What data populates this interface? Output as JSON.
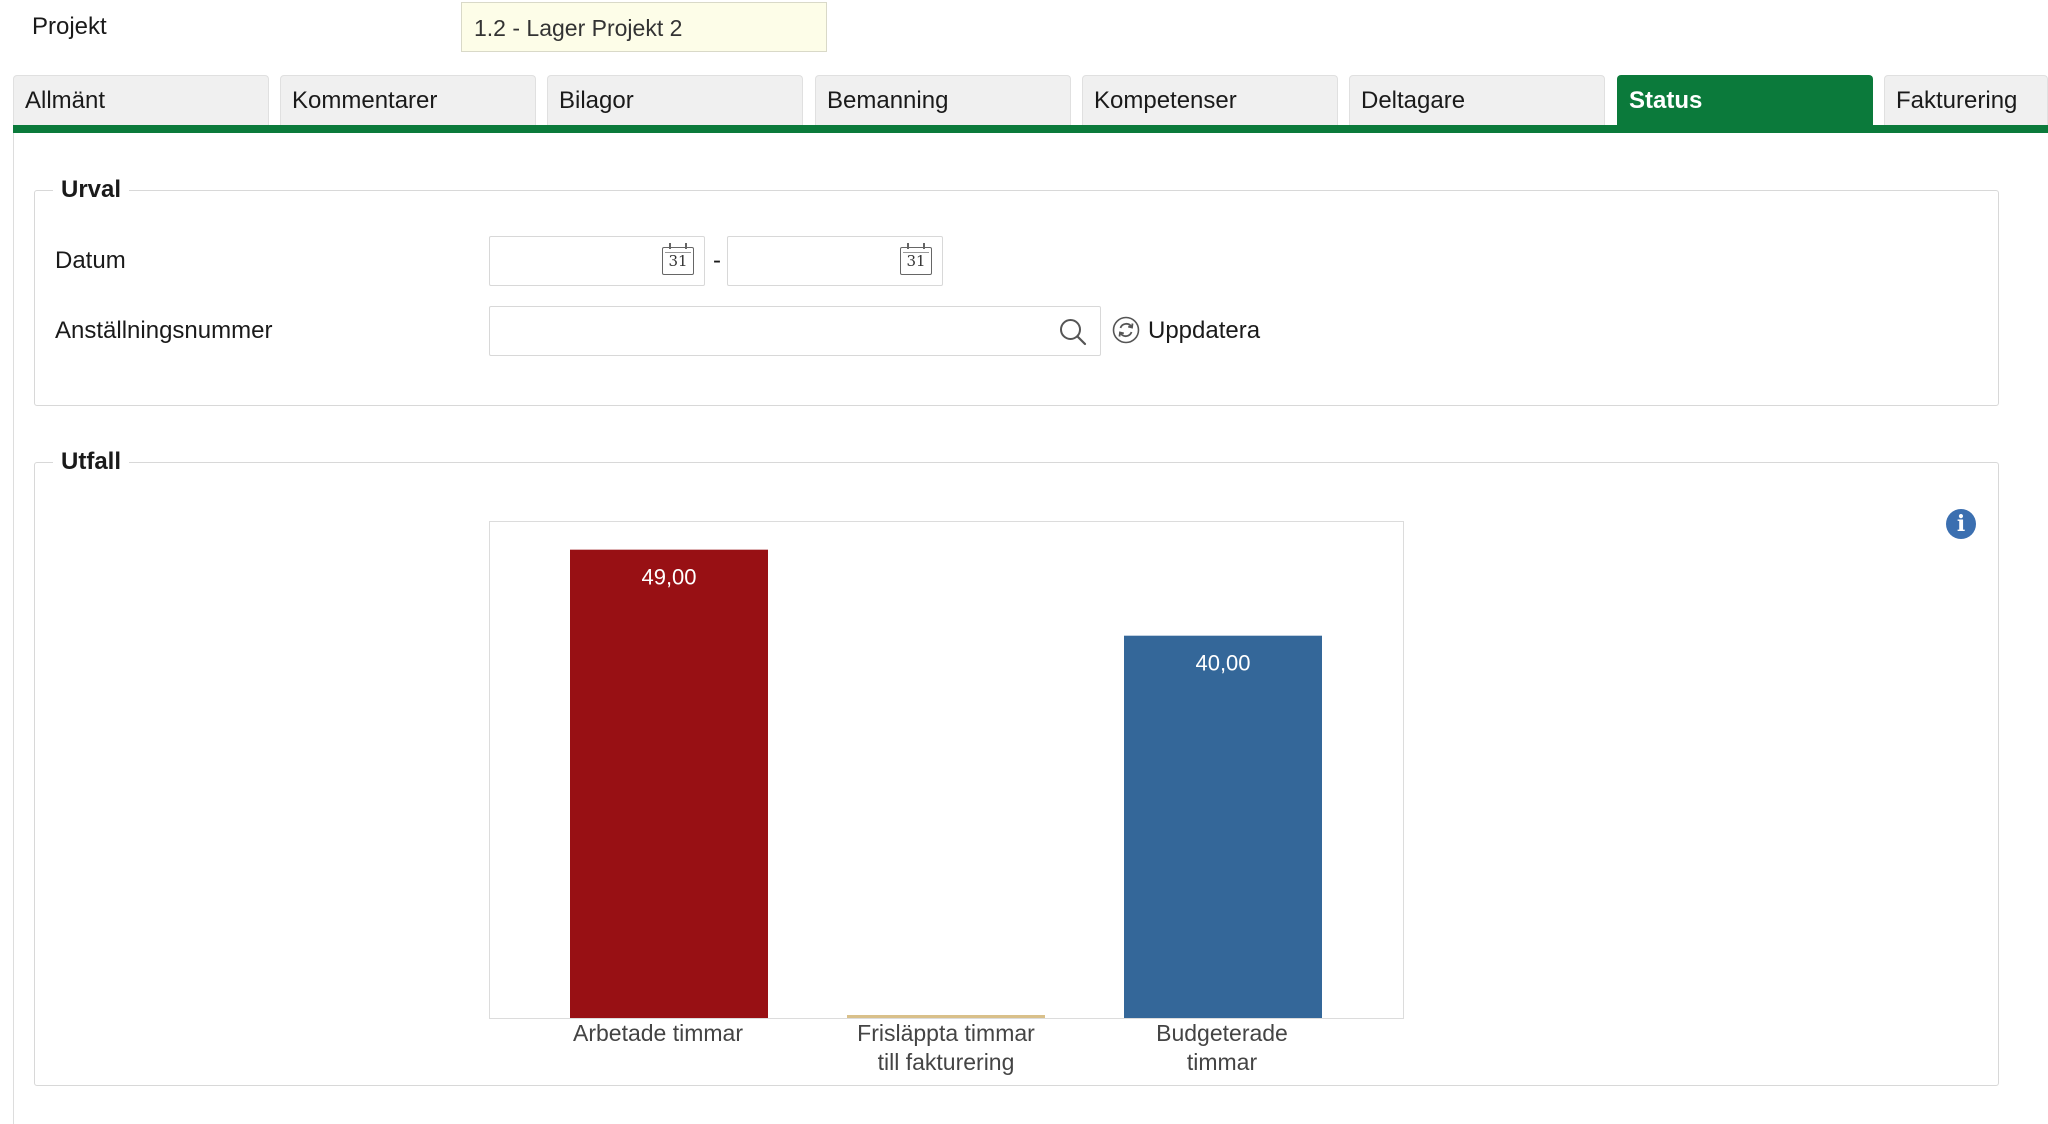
{
  "project": {
    "label": "Projekt",
    "value": "1.2 - Lager Projekt 2"
  },
  "tabs": [
    {
      "label": "Allmänt",
      "active": false
    },
    {
      "label": "Kommentarer",
      "active": false
    },
    {
      "label": "Bilagor",
      "active": false
    },
    {
      "label": "Bemanning",
      "active": false
    },
    {
      "label": "Kompetenser",
      "active": false
    },
    {
      "label": "Deltagare",
      "active": false
    },
    {
      "label": "Status",
      "active": true
    },
    {
      "label": "Fakturering",
      "active": false
    }
  ],
  "urval": {
    "legend": "Urval",
    "date_label": "Datum",
    "date_from": "",
    "date_to": "",
    "date_separator": "-",
    "calendar_day": "31",
    "employee_label": "Anställningsnummer",
    "employee_value": "",
    "refresh_label": "Uppdatera"
  },
  "utfall": {
    "legend": "Utfall",
    "info_glyph": "i"
  },
  "colors": {
    "accent": "#0b7a3b",
    "bar_worked": "#981014",
    "bar_released": "#d9c08a",
    "bar_budget": "#346799",
    "info": "#3b6fb0"
  },
  "chart_data": {
    "type": "bar",
    "title": "",
    "xlabel": "",
    "ylabel": "",
    "categories": [
      "Arbetade timmar",
      "Frisläppta timmar till fakturering",
      "Budgeterade timmar"
    ],
    "category_lines": [
      [
        "Arbetade timmar"
      ],
      [
        "Frisläppta timmar",
        "till fakturering"
      ],
      [
        "Budgeterade",
        "timmar"
      ]
    ],
    "values": [
      49,
      0,
      40
    ],
    "value_labels": [
      "49,00",
      "",
      "40,00"
    ],
    "colors": [
      "#981014",
      "#d9c08a",
      "#346799"
    ],
    "ylim": [
      0,
      52
    ],
    "grid": false,
    "legend": "none"
  }
}
